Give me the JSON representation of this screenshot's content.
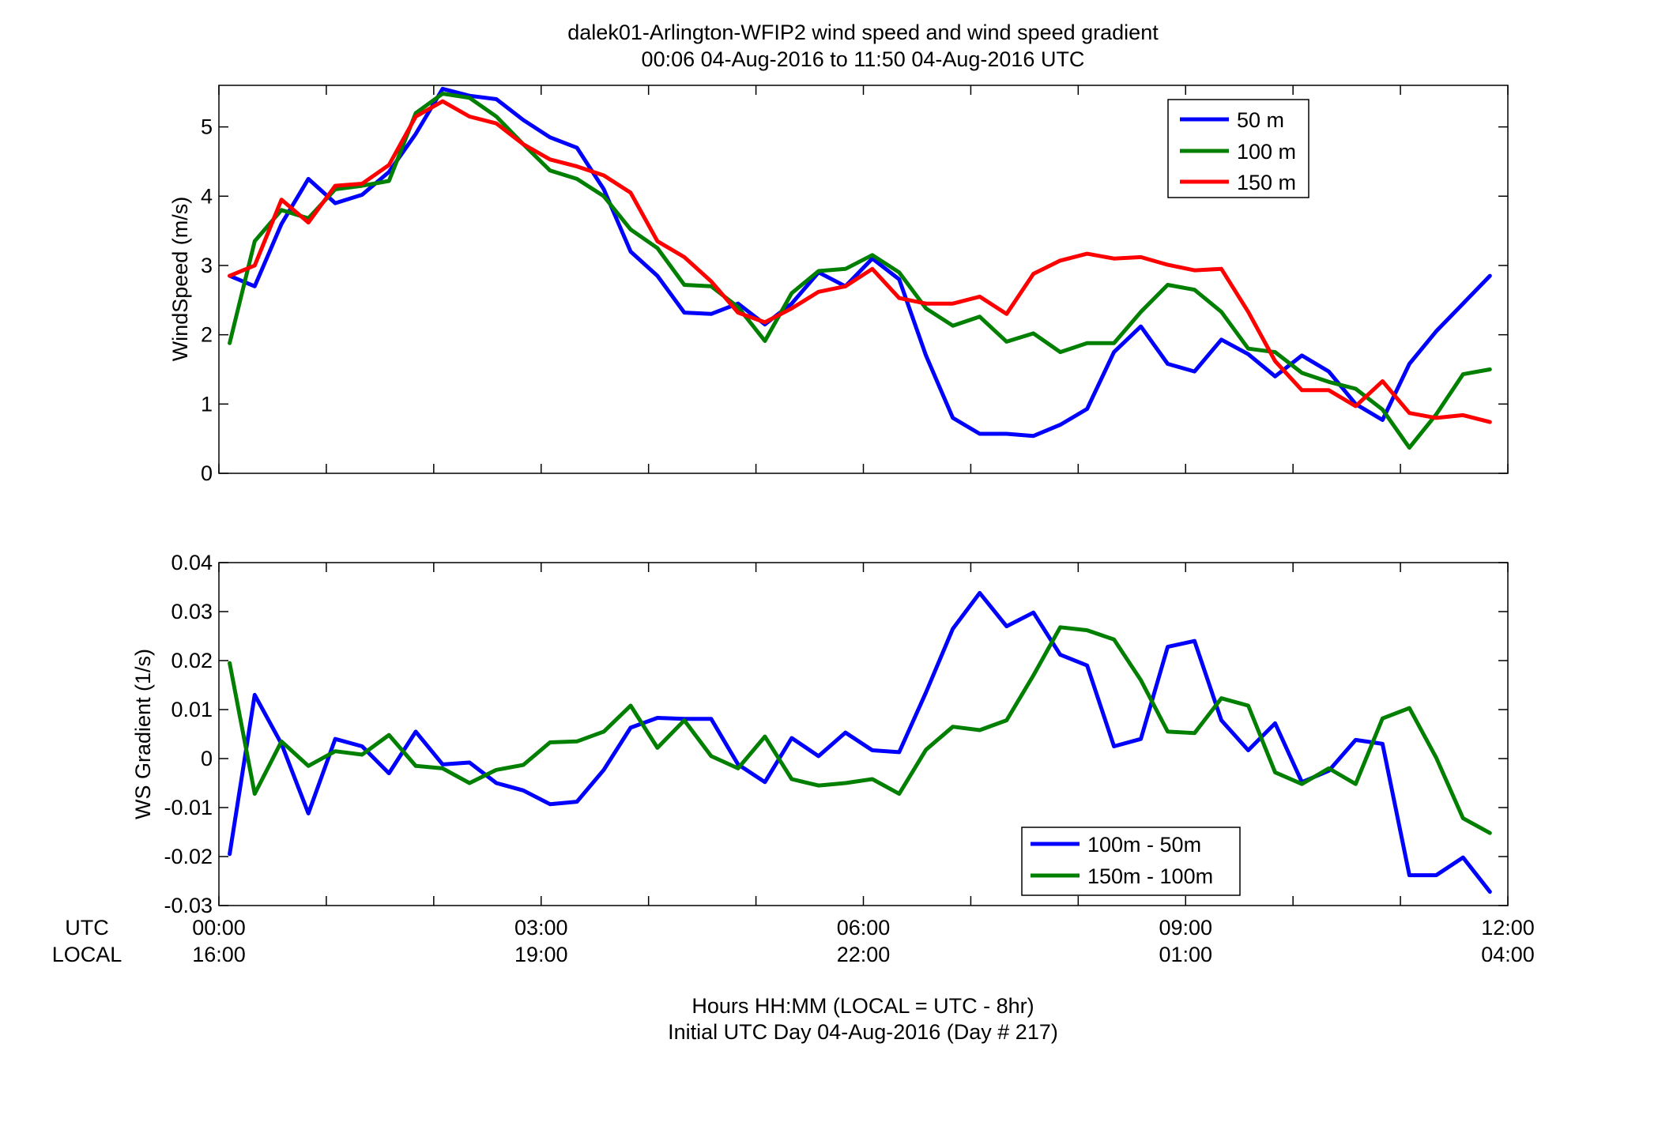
{
  "title": {
    "line1": "dalek01-Arlington-WFIP2  wind speed and wind speed gradient",
    "line2": "00:06 04-Aug-2016 to 11:50 04-Aug-2016  UTC"
  },
  "xaxis": {
    "utc_label": "UTC",
    "local_label": "LOCAL",
    "ticks_utc": [
      "00:00",
      "03:00",
      "06:00",
      "09:00",
      "12:00"
    ],
    "ticks_local": [
      "16:00",
      "19:00",
      "22:00",
      "01:00",
      "04:00"
    ],
    "tick_hours": [
      0,
      3,
      6,
      9,
      12
    ],
    "xlabel_line1": "Hours HH:MM  (LOCAL = UTC - 8hr)",
    "xlabel_line2": "Initial UTC Day 04-Aug-2016 (Day # 217)",
    "range_hours": [
      0,
      12
    ]
  },
  "chart_data": [
    {
      "type": "line",
      "ylabel": "WindSpeed (m/s)",
      "xlim": [
        0,
        12
      ],
      "ylim": [
        0,
        5.6
      ],
      "yticks": [
        0,
        1,
        2,
        3,
        4,
        5
      ],
      "legend_position": "top-right",
      "x_hours": [
        0.1,
        0.333,
        0.583,
        0.833,
        1.083,
        1.333,
        1.583,
        1.833,
        2.083,
        2.333,
        2.583,
        2.833,
        3.083,
        3.333,
        3.583,
        3.833,
        4.083,
        4.333,
        4.583,
        4.833,
        5.083,
        5.333,
        5.583,
        5.833,
        6.083,
        6.333,
        6.583,
        6.833,
        7.083,
        7.333,
        7.583,
        7.833,
        8.083,
        8.333,
        8.583,
        8.833,
        9.083,
        9.333,
        9.583,
        9.833,
        10.083,
        10.333,
        10.583,
        10.833,
        11.083,
        11.333,
        11.583,
        11.833
      ],
      "series": [
        {
          "name": "50 m",
          "color": "#0000ff",
          "values": [
            2.85,
            2.7,
            3.6,
            4.25,
            3.9,
            4.02,
            4.35,
            4.9,
            5.55,
            5.45,
            5.4,
            5.1,
            4.85,
            4.7,
            4.1,
            3.2,
            2.85,
            2.32,
            2.3,
            2.45,
            2.15,
            2.45,
            2.9,
            2.7,
            3.1,
            2.8,
            1.7,
            0.8,
            0.57,
            0.57,
            0.54,
            0.7,
            0.93,
            1.75,
            2.12,
            1.58,
            1.47,
            1.93,
            1.72,
            1.4,
            1.7,
            1.47,
            1.0,
            0.77,
            1.58,
            2.05,
            2.45,
            2.85
          ]
        },
        {
          "name": "100 m",
          "color": "#007f00",
          "values": [
            1.88,
            3.35,
            3.8,
            3.68,
            4.1,
            4.15,
            4.22,
            5.2,
            5.48,
            5.42,
            5.15,
            4.75,
            4.37,
            4.25,
            4.0,
            3.52,
            3.25,
            2.72,
            2.7,
            2.4,
            1.91,
            2.6,
            2.92,
            2.95,
            3.15,
            2.9,
            2.38,
            2.13,
            2.26,
            1.9,
            2.02,
            1.75,
            1.88,
            1.88,
            2.33,
            2.72,
            2.65,
            2.33,
            1.8,
            1.75,
            1.45,
            1.32,
            1.22,
            0.92,
            0.37,
            0.85,
            1.43,
            1.5
          ]
        },
        {
          "name": "150 m",
          "color": "#ff0000",
          "values": [
            2.85,
            3.0,
            3.95,
            3.62,
            4.15,
            4.18,
            4.45,
            5.15,
            5.37,
            5.15,
            5.05,
            4.75,
            4.53,
            4.43,
            4.3,
            4.05,
            3.35,
            3.12,
            2.77,
            2.32,
            2.18,
            2.38,
            2.62,
            2.7,
            2.95,
            2.53,
            2.45,
            2.45,
            2.55,
            2.3,
            2.88,
            3.07,
            3.17,
            3.1,
            3.12,
            3.01,
            2.93,
            2.95,
            2.33,
            1.62,
            1.2,
            1.2,
            0.97,
            1.33,
            0.87,
            0.8,
            0.84,
            0.74
          ]
        }
      ]
    },
    {
      "type": "line",
      "ylabel": "WS Gradient (1/s)",
      "xlim": [
        0,
        12
      ],
      "ylim": [
        -0.03,
        0.04
      ],
      "yticks": [
        -0.03,
        -0.02,
        -0.01,
        0,
        0.01,
        0.02,
        0.03,
        0.04
      ],
      "yticklabels": [
        "-0.03",
        "-0.02",
        "-0.01",
        "0",
        "0.01",
        "0.02",
        "0.03",
        "0.04"
      ],
      "legend_position": "bottom-right",
      "x_hours": [
        0.1,
        0.333,
        0.583,
        0.833,
        1.083,
        1.333,
        1.583,
        1.833,
        2.083,
        2.333,
        2.583,
        2.833,
        3.083,
        3.333,
        3.583,
        3.833,
        4.083,
        4.333,
        4.583,
        4.833,
        5.083,
        5.333,
        5.583,
        5.833,
        6.083,
        6.333,
        6.583,
        6.833,
        7.083,
        7.333,
        7.583,
        7.833,
        8.083,
        8.333,
        8.583,
        8.833,
        9.083,
        9.333,
        9.583,
        9.833,
        10.083,
        10.333,
        10.583,
        10.833,
        11.083,
        11.333,
        11.583,
        11.833
      ],
      "series": [
        {
          "name": "100m - 50m",
          "color": "#0000ff",
          "values": [
            -0.0195,
            0.013,
            0.003,
            -0.0112,
            0.004,
            0.0025,
            -0.003,
            0.0055,
            -0.0012,
            -0.0008,
            -0.005,
            -0.0065,
            -0.0093,
            -0.0088,
            -0.0023,
            0.0063,
            0.0083,
            0.0081,
            0.0081,
            -0.0012,
            -0.0048,
            0.0042,
            0.0005,
            0.0053,
            0.0017,
            0.0013,
            0.0135,
            0.0265,
            0.0338,
            0.027,
            0.0298,
            0.0212,
            0.019,
            0.0025,
            0.004,
            0.0228,
            0.024,
            0.0078,
            0.0017,
            0.0072,
            -0.0048,
            -0.0025,
            0.0038,
            0.003,
            -0.0238,
            -0.0238,
            -0.0202,
            -0.0272
          ]
        },
        {
          "name": "150m - 100m",
          "color": "#007f00",
          "values": [
            0.0195,
            -0.0072,
            0.0035,
            -0.0015,
            0.0015,
            0.0008,
            0.0048,
            -0.0015,
            -0.002,
            -0.005,
            -0.0023,
            -0.0013,
            0.0033,
            0.0035,
            0.0055,
            0.0108,
            0.0022,
            0.0078,
            0.0005,
            -0.002,
            0.0045,
            -0.0042,
            -0.0055,
            -0.005,
            -0.0042,
            -0.0072,
            0.0018,
            0.0065,
            0.0058,
            0.0078,
            0.017,
            0.0268,
            0.0262,
            0.0243,
            0.016,
            0.0055,
            0.0052,
            0.0123,
            0.0108,
            -0.0028,
            -0.0052,
            -0.002,
            -0.0052,
            0.0082,
            0.0103,
            0.0002,
            -0.0122,
            -0.0152
          ]
        }
      ]
    }
  ]
}
